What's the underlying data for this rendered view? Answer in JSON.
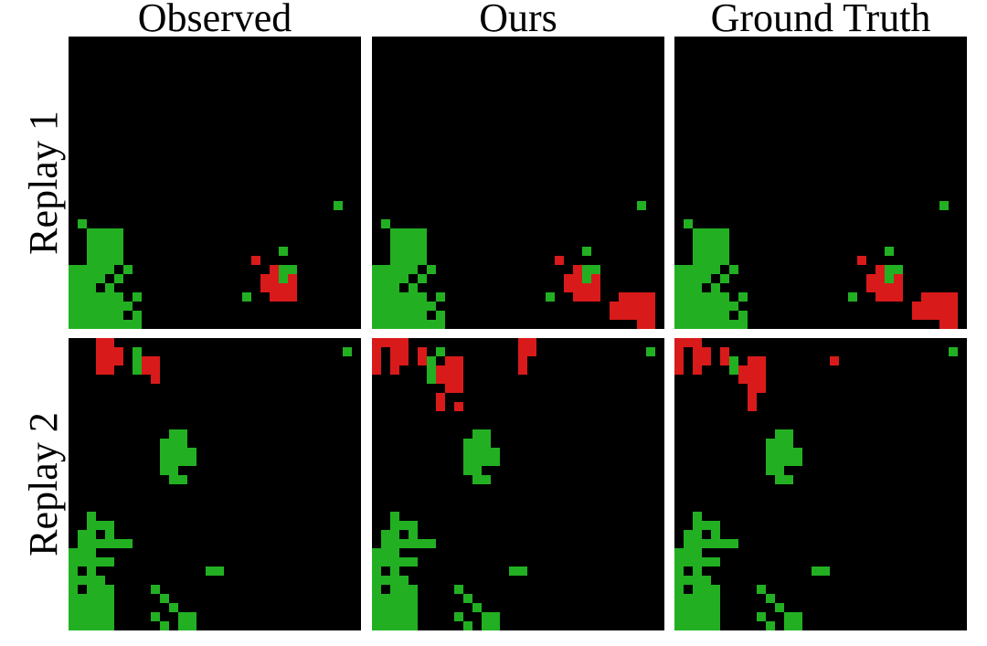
{
  "columns": [
    "Observed",
    "Ours",
    "Ground Truth"
  ],
  "rows": [
    "Replay 1",
    "Replay 2"
  ]
}
